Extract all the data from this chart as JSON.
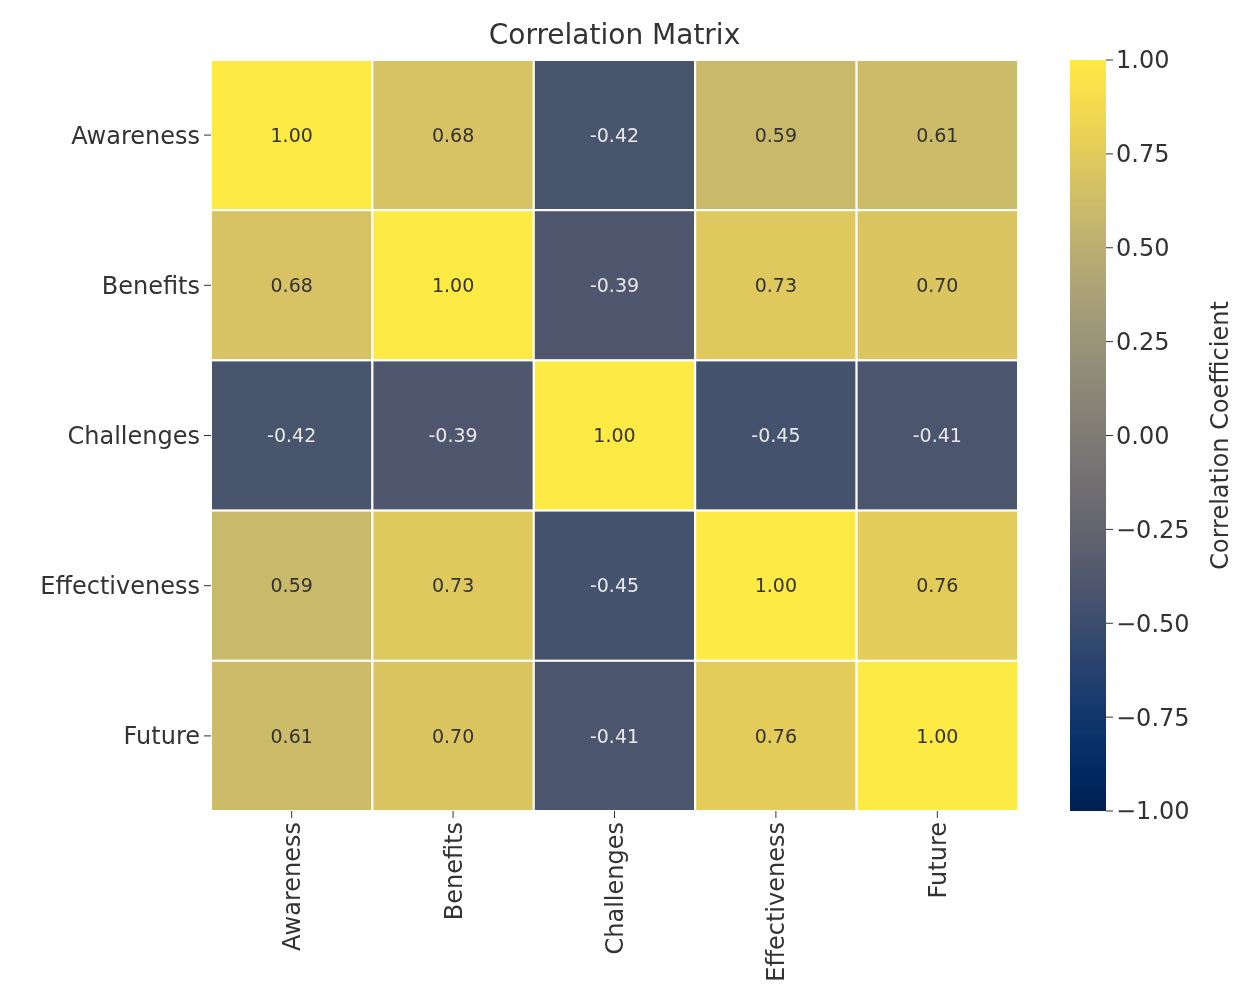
{
  "chart_data": {
    "type": "heatmap",
    "title": "Correlation Matrix",
    "categories": [
      "Awareness",
      "Benefits",
      "Challenges",
      "Effectiveness",
      "Future"
    ],
    "y_categories": [
      "Awareness",
      "Benefits",
      "Challenges",
      "Effectiveness",
      "Future"
    ],
    "cells": [
      [
        1,
        0.68,
        -0.42,
        0.59,
        0.61
      ],
      [
        0.68,
        1,
        -0.39,
        0.73,
        0.7
      ],
      [
        -0.42,
        -0.39,
        1,
        -0.45,
        -0.41
      ],
      [
        0.59,
        0.73,
        -0.45,
        1,
        0.76
      ],
      [
        0.61,
        0.7,
        -0.41,
        0.76,
        1
      ]
    ],
    "cell_labels": [
      [
        "1.00",
        "0.68",
        "-0.42",
        "0.59",
        "0.61"
      ],
      [
        "0.68",
        "1.00",
        "-0.39",
        "0.73",
        "0.70"
      ],
      [
        "-0.42",
        "-0.39",
        "1.00",
        "-0.45",
        "-0.41"
      ],
      [
        "0.59",
        "0.73",
        "-0.45",
        "1.00",
        "0.76"
      ],
      [
        "0.61",
        "0.70",
        "-0.41",
        "0.76",
        "1.00"
      ]
    ],
    "clabel": "Correlation Coefficient",
    "clim": [
      -1,
      1
    ],
    "cticks": [
      {
        "value": -1,
        "label": "−1.00"
      },
      {
        "value": -0.75,
        "label": "−0.75"
      },
      {
        "value": -0.5,
        "label": "−0.50"
      },
      {
        "value": -0.25,
        "label": "−0.25"
      },
      {
        "value": 0,
        "label": "0.00"
      },
      {
        "value": 0.25,
        "label": "0.25"
      },
      {
        "value": 0.5,
        "label": "0.50"
      },
      {
        "value": 0.75,
        "label": "0.75"
      },
      {
        "value": 1,
        "label": "1.00"
      }
    ]
  }
}
